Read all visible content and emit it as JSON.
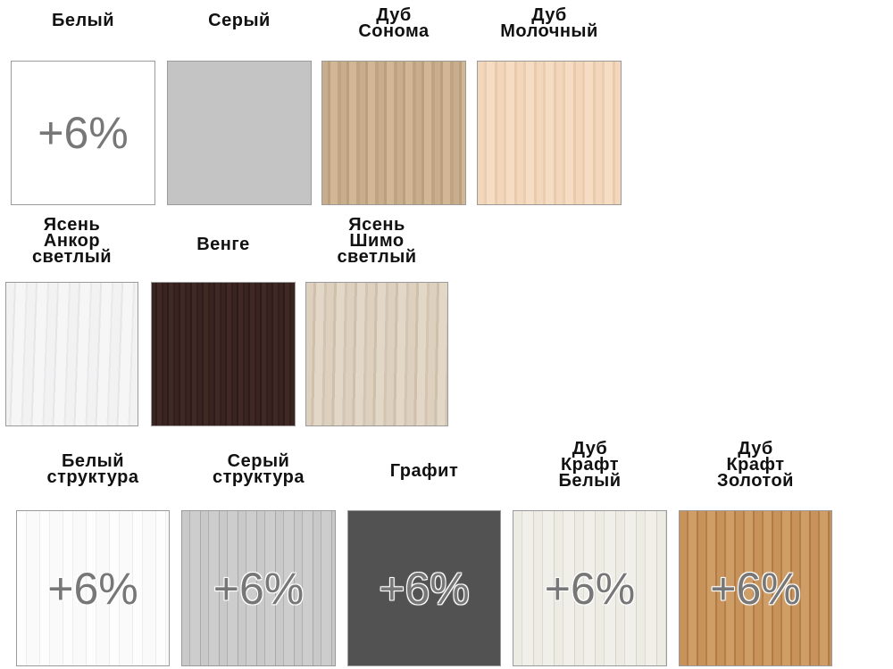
{
  "swatches": [
    {
      "label": "Белый",
      "badge": "+6%",
      "color": "#ffffff"
    },
    {
      "label": "Серый",
      "badge": "",
      "color": "#c4c4c4"
    },
    {
      "label": "Дуб\nСонома",
      "badge": "",
      "color": "#c9ae8e"
    },
    {
      "label": "Дуб\nМолочный",
      "badge": "",
      "color": "#f2d7bd"
    },
    {
      "label": "Ясень\nАнкор\nсветлый",
      "badge": "",
      "color": "#f2f2f3"
    },
    {
      "label": "Венге",
      "badge": "",
      "color": "#3a2421"
    },
    {
      "label": "Ясень\nШимо\nсветлый",
      "badge": "",
      "color": "#ddd0bf"
    },
    {
      "label": "Белый\nструктура",
      "badge": "+6%",
      "color": "#fdfdfd"
    },
    {
      "label": "Серый\nструктура",
      "badge": "+6%",
      "color": "#c9c9c9"
    },
    {
      "label": "Графит",
      "badge": "+6%",
      "color": "#525252"
    },
    {
      "label": "Дуб\nКрафт\nБелый",
      "badge": "+6%",
      "color": "#ecebe4"
    },
    {
      "label": "Дуб\nКрафт\nЗолотой",
      "badge": "+6%",
      "color": "#c7935b"
    }
  ]
}
